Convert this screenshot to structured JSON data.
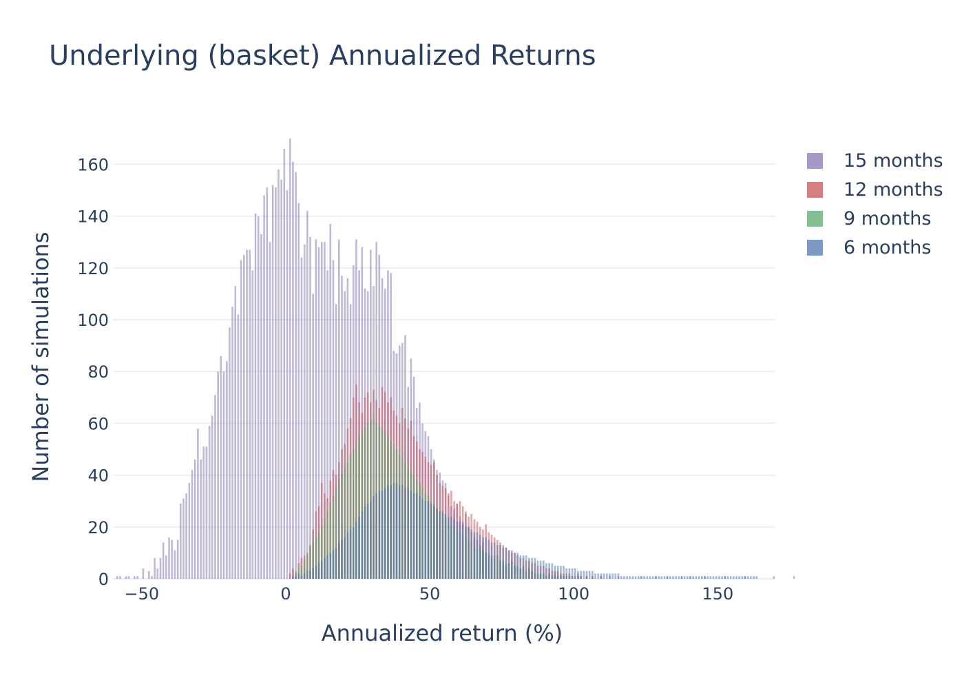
{
  "chart_data": {
    "type": "bar",
    "title": "Underlying (basket) Annualized Returns",
    "xlabel": "Annualized return (%)",
    "ylabel": "Number of simulations",
    "xlim": [
      -60,
      170
    ],
    "ylim": [
      0,
      175
    ],
    "x_ticks": [
      -50,
      0,
      50,
      100,
      150
    ],
    "x_tick_labels": [
      "−50",
      "0",
      "50",
      "100",
      "150"
    ],
    "y_ticks": [
      0,
      20,
      40,
      60,
      80,
      100,
      120,
      140,
      160
    ],
    "barmode": "overlay",
    "bin_width": 1,
    "bar_opacity": 0.5,
    "legend_position": "right-top",
    "grid": true,
    "series": [
      {
        "name": "15 months",
        "color": "#8172b2",
        "x_start": -59,
        "values": [
          1,
          1,
          0,
          1,
          1,
          0,
          1,
          1,
          0,
          4,
          0,
          3,
          1,
          8,
          4,
          8,
          14,
          9,
          16,
          15,
          11,
          15,
          29,
          31,
          33,
          37,
          42,
          46,
          58,
          46,
          51,
          51,
          59,
          63,
          71,
          80,
          86,
          80,
          84,
          97,
          105,
          113,
          102,
          123,
          125,
          127,
          127,
          119,
          141,
          140,
          133,
          148,
          151,
          130,
          152,
          151,
          158,
          154,
          166,
          150,
          170,
          161,
          157,
          145,
          124,
          129,
          142,
          132,
          110,
          131,
          128,
          130,
          130,
          119,
          137,
          123,
          106,
          131,
          117,
          111,
          116,
          106,
          121,
          131,
          119,
          128,
          112,
          111,
          127,
          113,
          130,
          125,
          116,
          112,
          119,
          118,
          88,
          87,
          90,
          91,
          94,
          74,
          85,
          78,
          66,
          68,
          60,
          57,
          55,
          50,
          46,
          42,
          41,
          38,
          37,
          32,
          28,
          27,
          29,
          24,
          22,
          25,
          20,
          18,
          16,
          15,
          13,
          14,
          10,
          9,
          8,
          9,
          9,
          7,
          6,
          5,
          6,
          7,
          5,
          5,
          4,
          5,
          3,
          4,
          3,
          2,
          1,
          2,
          2,
          1,
          2,
          1,
          2,
          1,
          1,
          1,
          1,
          0,
          1,
          0,
          2,
          1,
          0,
          1,
          0,
          1,
          0,
          0,
          1,
          0,
          0,
          1,
          0,
          0,
          1,
          0,
          0,
          0,
          0,
          0,
          0,
          0,
          1,
          0,
          0,
          0,
          0,
          1,
          0,
          0,
          0,
          1,
          0,
          0,
          0,
          0,
          1,
          0,
          0,
          1,
          0,
          0,
          0,
          0,
          1,
          0,
          0,
          0,
          0,
          0,
          0,
          1,
          0,
          0,
          0,
          0,
          0,
          0,
          1,
          0,
          0,
          0,
          0,
          0,
          0,
          0,
          0,
          0,
          1,
          0,
          0,
          0,
          0,
          0,
          0,
          1
        ]
      },
      {
        "name": "12 months",
        "color": "#c44e52",
        "x_start": 0,
        "values": [
          0,
          2,
          4,
          2,
          6,
          8,
          9,
          10,
          13,
          19,
          26,
          28,
          37,
          33,
          31,
          38,
          42,
          40,
          45,
          50,
          52,
          58,
          62,
          70,
          75,
          68,
          64,
          70,
          72,
          68,
          73,
          69,
          66,
          74,
          72,
          68,
          70,
          65,
          63,
          60,
          66,
          62,
          58,
          61,
          55,
          53,
          50,
          49,
          47,
          45,
          44,
          45,
          40,
          37,
          36,
          35,
          33,
          34,
          30,
          29,
          30,
          28,
          26,
          24,
          25,
          23,
          22,
          20,
          19,
          21,
          18,
          17,
          16,
          15,
          14,
          13,
          12,
          11,
          10,
          10,
          9,
          8,
          8,
          7,
          7,
          6,
          6,
          5,
          5,
          5,
          4,
          4,
          3,
          3,
          3,
          2,
          2,
          2,
          2,
          1,
          1,
          1,
          1,
          0,
          1,
          0,
          1,
          0,
          0,
          1
        ]
      },
      {
        "name": "9 months",
        "color": "#55a868",
        "x_start": 3,
        "values": [
          3,
          4,
          5,
          7,
          9,
          12,
          14,
          16,
          18,
          20,
          23,
          26,
          29,
          32,
          35,
          38,
          41,
          43,
          45,
          48,
          50,
          53,
          55,
          57,
          58,
          60,
          61,
          62,
          60,
          59,
          58,
          56,
          55,
          53,
          52,
          50,
          48,
          47,
          45,
          43,
          42,
          40,
          38,
          37,
          35,
          33,
          32,
          30,
          29,
          27,
          26,
          25,
          24,
          22,
          21,
          20,
          19,
          18,
          17,
          16,
          15,
          14,
          13,
          12,
          12,
          11,
          10,
          10,
          9,
          8,
          8,
          7,
          7,
          6,
          6,
          5,
          5,
          5,
          4,
          4,
          3,
          3,
          3,
          2,
          2,
          2,
          2,
          1,
          1,
          1,
          1,
          1,
          0,
          1,
          0,
          1
        ]
      },
      {
        "name": "6 months",
        "color": "#4c72b0",
        "x_start": 2,
        "values": [
          1,
          1,
          2,
          1,
          2,
          3,
          3,
          4,
          5,
          6,
          7,
          8,
          9,
          10,
          11,
          12,
          14,
          15,
          16,
          18,
          19,
          20,
          22,
          24,
          26,
          28,
          29,
          30,
          32,
          33,
          34,
          34,
          35,
          36,
          36,
          37,
          37,
          36,
          36,
          35,
          35,
          34,
          33,
          33,
          32,
          31,
          30,
          30,
          29,
          28,
          27,
          26,
          26,
          25,
          24,
          24,
          23,
          22,
          22,
          21,
          20,
          20,
          19,
          18,
          18,
          17,
          16,
          16,
          15,
          14,
          14,
          13,
          13,
          12,
          12,
          11,
          11,
          10,
          10,
          9,
          9,
          9,
          8,
          8,
          8,
          7,
          7,
          7,
          6,
          6,
          6,
          5,
          5,
          5,
          5,
          4,
          4,
          4,
          4,
          3,
          3,
          3,
          3,
          3,
          3,
          2,
          2,
          2,
          2,
          2,
          2,
          2,
          2,
          2,
          1,
          1,
          1,
          1,
          1,
          1,
          1,
          1,
          1,
          1,
          1,
          1,
          1,
          1,
          1,
          1,
          1,
          1,
          1,
          1,
          1,
          1,
          1,
          1,
          1,
          1,
          1,
          1,
          1,
          1,
          1,
          1,
          1,
          1,
          1,
          1,
          1,
          1,
          1,
          1,
          1,
          1,
          1,
          1,
          1,
          1,
          1,
          1
        ]
      }
    ]
  }
}
